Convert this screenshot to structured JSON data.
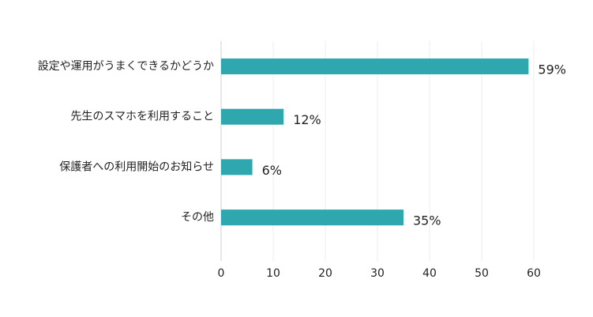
{
  "chart_data": {
    "type": "bar",
    "orientation": "horizontal",
    "categories": [
      "設定や運用がうまくできるかどうか",
      "先生のスマホを利用すること",
      "保護者への利用開始のお知らせ",
      "その他"
    ],
    "values": [
      59,
      12,
      6,
      35
    ],
    "value_labels": [
      "59%",
      "12%",
      "6%",
      "35%"
    ],
    "color": "#2fa7ae",
    "xlim": [
      0,
      60
    ],
    "xticks": [
      0,
      10,
      20,
      30,
      40,
      50,
      60
    ],
    "grid": true
  }
}
